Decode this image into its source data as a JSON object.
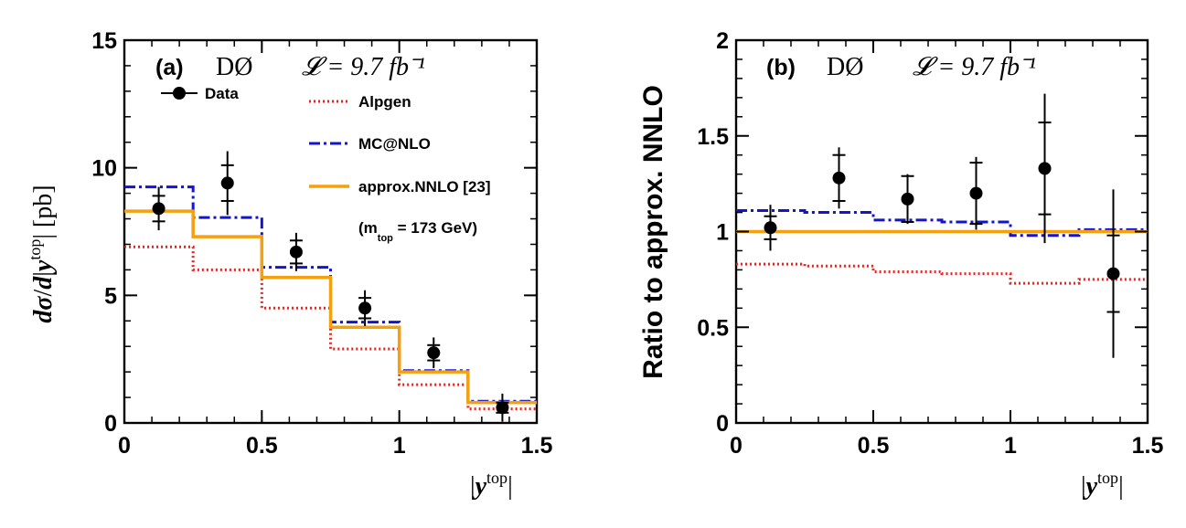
{
  "chart_data": [
    {
      "type": "step",
      "panel_label": "(a)",
      "experiment": "DØ",
      "lumi_text": "𝓛 = 9.7 fb⁻¹",
      "xlabel": "|y^top|",
      "ylabel": "dσ/d|y^top| [pb]",
      "xlim": [
        0,
        1.5
      ],
      "ylim": [
        0,
        15
      ],
      "xticks": [
        0,
        0.5,
        1,
        1.5
      ],
      "xtick_labels": [
        "0",
        "0.5",
        "1",
        "1.5"
      ],
      "yticks": [
        0,
        5,
        10,
        15
      ],
      "ytick_labels": [
        "0",
        "5",
        "10",
        "15"
      ],
      "bin_edges": [
        0,
        0.25,
        0.5,
        0.75,
        1.0,
        1.25,
        1.5
      ],
      "series": [
        {
          "name": "Alpgen",
          "style": "dotted",
          "color": "#e8221f",
          "values": [
            6.9,
            6.0,
            4.5,
            2.9,
            1.5,
            0.55
          ]
        },
        {
          "name": "MC@NLO",
          "style": "dashdot",
          "color": "#1414d0",
          "values": [
            9.25,
            8.05,
            6.1,
            3.95,
            2.05,
            0.85
          ]
        },
        {
          "name": "approx.NNLO [23]",
          "style": "solid",
          "color": "#f5a00c",
          "values": [
            8.3,
            7.3,
            5.7,
            3.75,
            2.0,
            0.8
          ]
        }
      ],
      "data": {
        "name": "Data",
        "x": [
          0.125,
          0.375,
          0.625,
          0.875,
          1.125,
          1.375
        ],
        "y": [
          8.4,
          9.4,
          6.7,
          4.5,
          2.75,
          0.6
        ],
        "err_inner": [
          0.5,
          0.7,
          0.45,
          0.4,
          0.3,
          0.2
        ],
        "err_total": [
          0.85,
          1.25,
          0.75,
          0.7,
          0.6,
          0.55
        ]
      },
      "legend_note": "(m",
      "legend_note_sub": "top",
      "legend_note_tail": " = 173 GeV)"
    },
    {
      "type": "step",
      "panel_label": "(b)",
      "experiment": "DØ",
      "lumi_text": "𝓛 = 9.7 fb⁻¹",
      "xlabel": "|y^top|",
      "ylabel": "Ratio to approx. NNLO",
      "xlim": [
        0,
        1.5
      ],
      "ylim": [
        0,
        2
      ],
      "xticks": [
        0,
        0.5,
        1,
        1.5
      ],
      "xtick_labels": [
        "0",
        "0.5",
        "1",
        "1.5"
      ],
      "yticks": [
        0,
        0.5,
        1,
        1.5,
        2
      ],
      "ytick_labels": [
        "0",
        "0.5",
        "1",
        "1.5",
        "2"
      ],
      "bin_edges": [
        0,
        0.25,
        0.5,
        0.75,
        1.0,
        1.25,
        1.5
      ],
      "series": [
        {
          "name": "Alpgen",
          "style": "dotted",
          "color": "#e8221f",
          "values": [
            0.83,
            0.82,
            0.79,
            0.78,
            0.73,
            0.75
          ]
        },
        {
          "name": "MC@NLO",
          "style": "dashdot",
          "color": "#1414d0",
          "values": [
            1.11,
            1.1,
            1.06,
            1.05,
            0.98,
            1.01
          ]
        },
        {
          "name": "approx.NNLO [23]",
          "style": "solid",
          "color": "#f5a00c",
          "values": [
            1.0,
            1.0,
            1.0,
            1.0,
            1.0,
            1.0
          ]
        }
      ],
      "data": {
        "name": "Data",
        "x": [
          0.125,
          0.375,
          0.625,
          0.875,
          1.125,
          1.375
        ],
        "y": [
          1.02,
          1.28,
          1.17,
          1.2,
          1.33,
          0.78
        ],
        "err_inner": [
          0.06,
          0.12,
          0.12,
          0.16,
          0.24,
          0.2
        ],
        "err_total": [
          0.12,
          0.16,
          0.13,
          0.19,
          0.39,
          0.44
        ]
      }
    }
  ]
}
